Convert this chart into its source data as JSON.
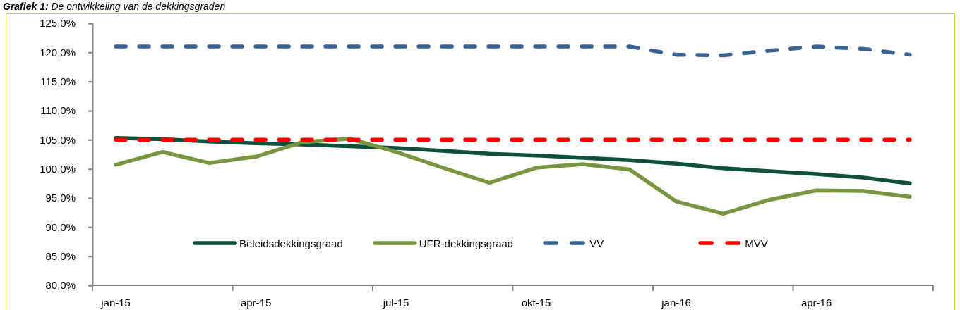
{
  "chart_data": {
    "type": "line",
    "title": "Grafiek 1: De ontwikkeling van de dekkingsgraden",
    "categories": [
      "jan-15",
      null,
      null,
      "apr-15",
      null,
      null,
      "jul-15",
      null,
      null,
      "okt-15",
      null,
      null,
      "jan-16",
      null,
      null,
      "apr-16",
      null,
      null
    ],
    "series": [
      {
        "name": "Beleidsdekkingsgraad",
        "color": "#0d503c",
        "line_style": "solid",
        "values": [
          105.3,
          105.1,
          104.7,
          104.4,
          104.2,
          103.9,
          103.6,
          103.1,
          102.6,
          102.3,
          101.9,
          101.5,
          100.9,
          100.1,
          99.6,
          99.1,
          98.5,
          97.5
        ]
      },
      {
        "name": "UFR-dekkingsgraad",
        "color": "#77963f",
        "line_style": "solid",
        "values": [
          100.7,
          102.9,
          101.0,
          102.1,
          104.6,
          105.2,
          102.9,
          100.2,
          97.6,
          100.2,
          100.8,
          99.9,
          94.4,
          92.3,
          94.7,
          96.3,
          96.2,
          95.2
        ]
      },
      {
        "name": "VV",
        "color": "#386196",
        "line_style": "dashed",
        "values": [
          121.0,
          121.0,
          121.0,
          121.0,
          121.0,
          121.0,
          121.0,
          121.0,
          121.0,
          121.0,
          121.0,
          121.0,
          119.6,
          119.5,
          120.3,
          121.0,
          120.6,
          119.6
        ]
      },
      {
        "name": "MVV",
        "color": "#ff0000",
        "line_style": "dashed",
        "values": [
          105.0,
          105.0,
          105.0,
          105.0,
          105.0,
          105.0,
          105.0,
          105.0,
          105.0,
          105.0,
          105.0,
          105.0,
          105.0,
          105.0,
          105.0,
          105.0,
          105.0,
          105.0
        ]
      }
    ],
    "ylim": [
      80,
      125
    ],
    "yticks": [
      {
        "value": 80,
        "label": "80,0%"
      },
      {
        "value": 85,
        "label": "85,0%"
      },
      {
        "value": 90,
        "label": "90,0%"
      },
      {
        "value": 95,
        "label": "95,0%"
      },
      {
        "value": 100,
        "label": "100,0%"
      },
      {
        "value": 105,
        "label": "105,0%"
      },
      {
        "value": 110,
        "label": "110,0%"
      },
      {
        "value": 115,
        "label": "115,0%"
      },
      {
        "value": 120,
        "label": "120,0%"
      },
      {
        "value": 125,
        "label": "125,0%"
      }
    ],
    "legend": "bottom"
  }
}
